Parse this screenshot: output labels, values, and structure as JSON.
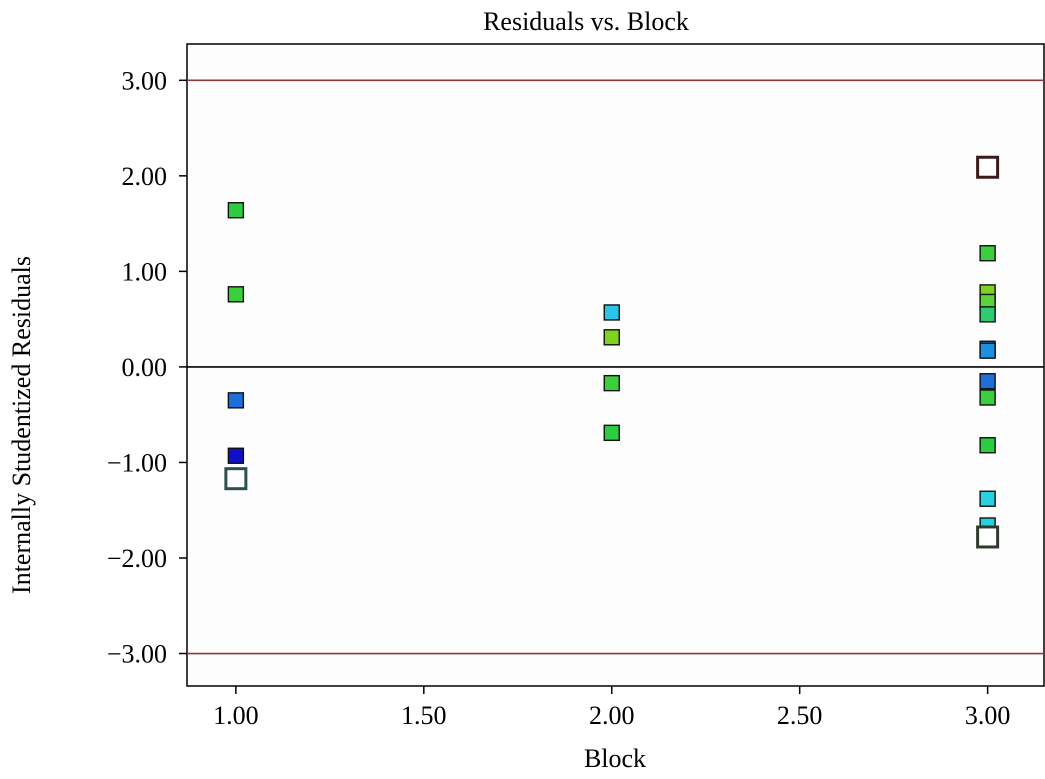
{
  "chart_data": {
    "type": "scatter",
    "title": "Residuals vs. Block",
    "xlabel": "Block",
    "ylabel": "Internally Studentized Residuals",
    "xlim": [
      0.87,
      3.15
    ],
    "ylim": [
      -3.34,
      3.38
    ],
    "x_ticks": [
      1.0,
      1.5,
      2.0,
      2.5,
      3.0
    ],
    "x_tick_labels": [
      "1.00",
      "1.50",
      "2.00",
      "2.50",
      "3.00"
    ],
    "y_ticks": [
      3.0,
      2.0,
      1.0,
      0.0,
      -1.0,
      -2.0,
      -3.0
    ],
    "y_tick_labels": [
      "3.00",
      "2.00",
      "1.00",
      "0.00",
      "−1.00",
      "−2.00",
      "−3.00"
    ],
    "reference_lines": [
      {
        "y": 3.0,
        "color": "#8b3a3a"
      },
      {
        "y": 0.0,
        "color": "#000000"
      },
      {
        "y": -3.0,
        "color": "#8b3a3a"
      }
    ],
    "grid": false,
    "legend": "none",
    "points": [
      {
        "x": 1.0,
        "y": 1.64,
        "color": "#2ecc40"
      },
      {
        "x": 1.0,
        "y": 0.76,
        "color": "#3ccf3c"
      },
      {
        "x": 1.0,
        "y": -0.35,
        "color": "#1e6fd9"
      },
      {
        "x": 1.0,
        "y": -0.93,
        "color": "#1010cc"
      },
      {
        "x": 1.0,
        "y": -1.17,
        "color": "#ffffff",
        "outline": "#2f4f4f",
        "large": true
      },
      {
        "x": 2.0,
        "y": 0.57,
        "color": "#29c4e8"
      },
      {
        "x": 2.0,
        "y": 0.31,
        "color": "#7ed321"
      },
      {
        "x": 2.0,
        "y": -0.17,
        "color": "#3ccf3c"
      },
      {
        "x": 2.0,
        "y": -0.69,
        "color": "#2ecc40"
      },
      {
        "x": 3.0,
        "y": 2.09,
        "color": "#ffffff",
        "outline": "#3a1a1a",
        "large": true
      },
      {
        "x": 3.0,
        "y": 1.19,
        "color": "#3ccf3c"
      },
      {
        "x": 3.0,
        "y": 0.78,
        "color": "#7ed321"
      },
      {
        "x": 3.0,
        "y": 0.68,
        "color": "#5ad43a"
      },
      {
        "x": 3.0,
        "y": 0.55,
        "color": "#2ecc71"
      },
      {
        "x": 3.0,
        "y": 0.19,
        "color": "#1a8fd0"
      },
      {
        "x": 3.0,
        "y": 0.17,
        "color": "#1e90e0"
      },
      {
        "x": 3.0,
        "y": -0.15,
        "color": "#1e6fd9"
      },
      {
        "x": 3.0,
        "y": -0.32,
        "color": "#3ccf3c"
      },
      {
        "x": 3.0,
        "y": -0.82,
        "color": "#2ecc40"
      },
      {
        "x": 3.0,
        "y": -1.38,
        "color": "#29d0e0"
      },
      {
        "x": 3.0,
        "y": -1.66,
        "color": "#29d0e0"
      },
      {
        "x": 3.0,
        "y": -1.78,
        "color": "#ffffff",
        "outline": "#2f3a2f",
        "large": true
      }
    ]
  }
}
